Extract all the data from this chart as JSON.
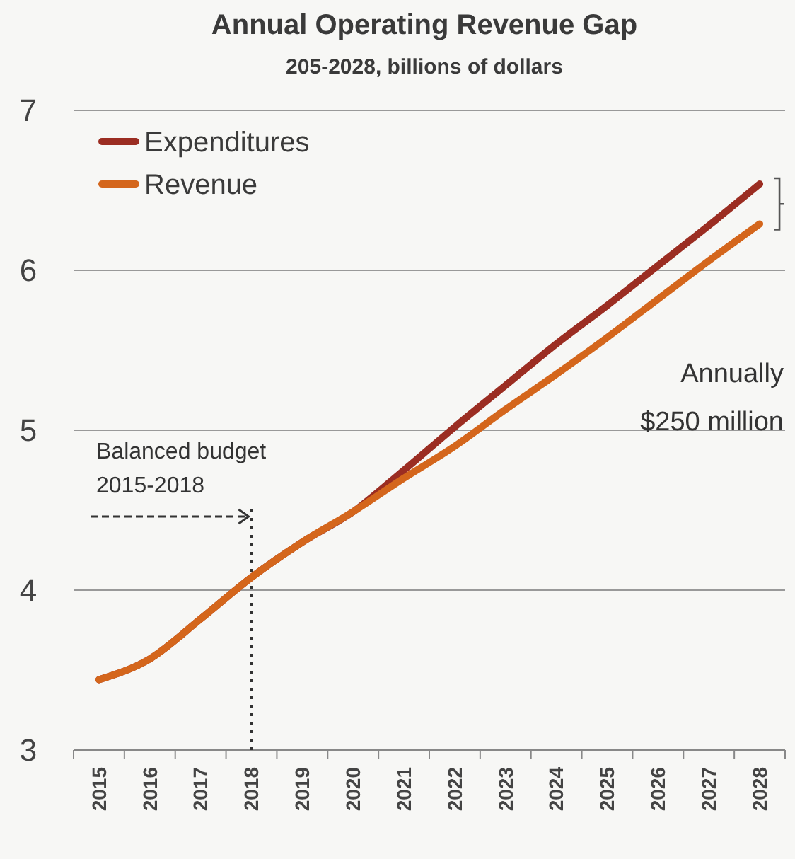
{
  "chart_data": {
    "type": "line",
    "title": "Annual Operating Revenue Gap",
    "subtitle": "205-2028, billions of dollars",
    "categories": [
      "2015",
      "2016",
      "2017",
      "2018",
      "2019",
      "2020",
      "2021",
      "2022",
      "2023",
      "2024",
      "2025",
      "2026",
      "2027",
      "2028"
    ],
    "series": [
      {
        "name": "Expenditures",
        "color": "#9b2d22",
        "values": [
          3.44,
          3.57,
          3.82,
          4.08,
          4.3,
          4.49,
          4.75,
          5.02,
          5.28,
          5.54,
          5.78,
          6.03,
          6.28,
          6.54
        ]
      },
      {
        "name": "Revenue",
        "color": "#d4661c",
        "values": [
          3.44,
          3.57,
          3.82,
          4.08,
          4.3,
          4.49,
          4.7,
          4.9,
          5.13,
          5.35,
          5.58,
          5.82,
          6.06,
          6.29
        ]
      }
    ],
    "ylim": [
      3,
      7
    ],
    "yticks": [
      3,
      4,
      5,
      6,
      7
    ],
    "grid": "y",
    "legend": "top left",
    "line_style": "solid",
    "ref_lines": [
      {
        "axis": "x",
        "value": "2018",
        "label": "Balanced budget\n2015-2018",
        "line_style": "dotted",
        "color": "#333333"
      }
    ],
    "annotations": [
      "Annually\n$250 million"
    ]
  }
}
